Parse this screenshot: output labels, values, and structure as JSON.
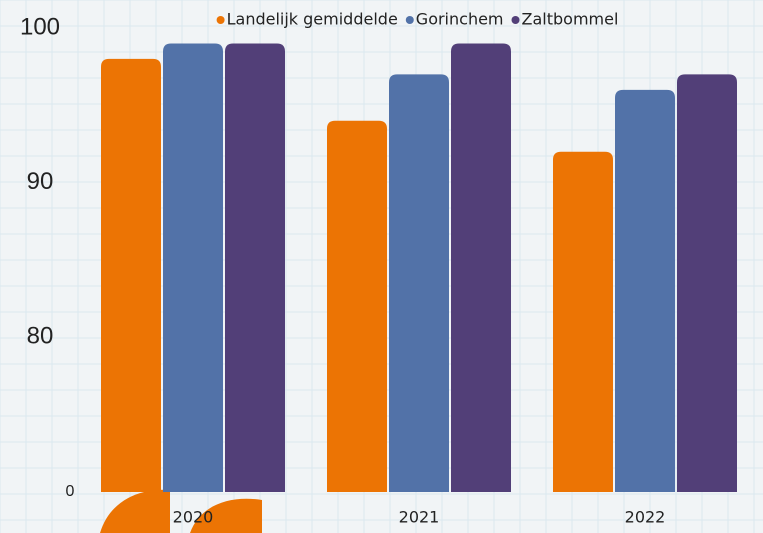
{
  "chart_data": {
    "type": "bar",
    "categories": [
      "2020",
      "2021",
      "2022"
    ],
    "series": [
      {
        "name": "Landelijk gemiddelde",
        "color": "#ec7404",
        "values": [
          98,
          94,
          92
        ]
      },
      {
        "name": "Gorinchem",
        "color": "#5272a8",
        "values": [
          99,
          97,
          96
        ]
      },
      {
        "name": "Zaltbommel",
        "color": "#523f78",
        "values": [
          99,
          99,
          97
        ]
      }
    ],
    "ylim": [
      0,
      100
    ],
    "yticks": [
      0,
      80,
      90,
      100
    ]
  }
}
